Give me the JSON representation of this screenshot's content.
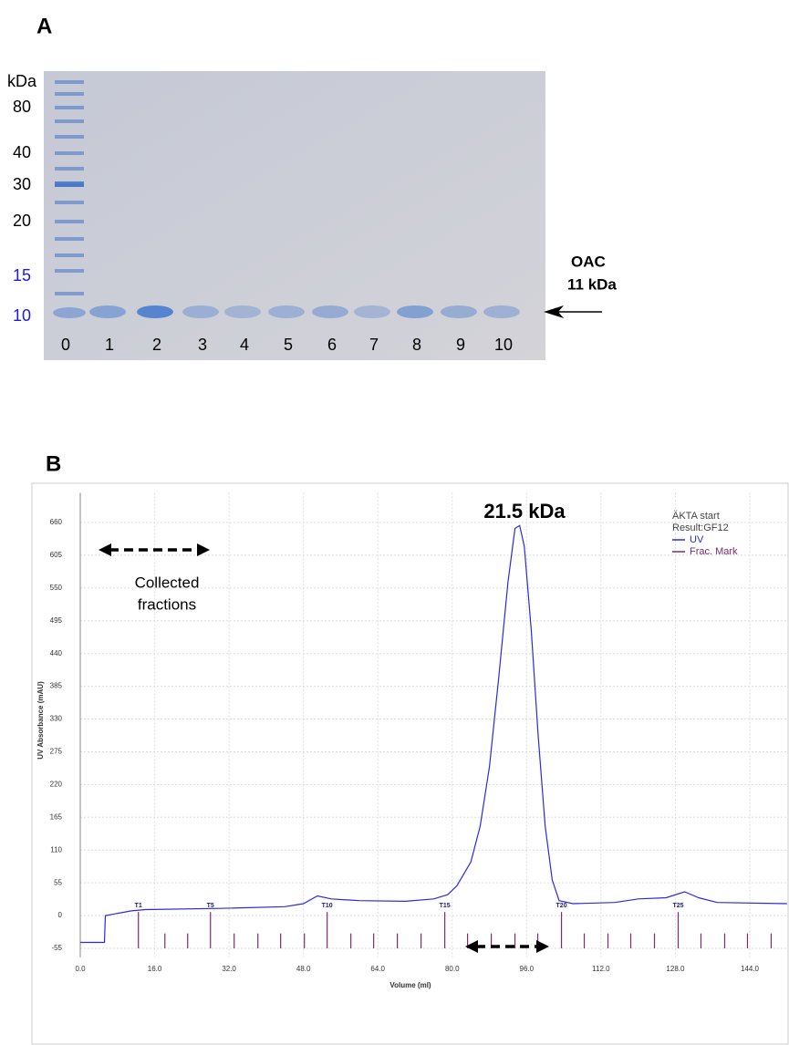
{
  "panel_a": {
    "label": "A",
    "mw_unit": "kDa",
    "mw_labels": [
      "80",
      "40",
      "30",
      "20",
      "15",
      "10"
    ],
    "lanes": [
      "0",
      "1",
      "2",
      "3",
      "4",
      "5",
      "6",
      "7",
      "8",
      "9",
      "10"
    ],
    "protein": "OAC",
    "protein_mass": "11 kDa"
  },
  "panel_b_label": "B",
  "chart_data": {
    "type": "line",
    "x_label": "Volume (ml)",
    "y_label": "UV Absorbance (mAU)",
    "xlim": [
      0,
      152
    ],
    "ylim": [
      -70,
      710
    ],
    "xticks": [
      {
        "value": 0,
        "label": "0.0"
      },
      {
        "value": 16,
        "label": "16.0"
      },
      {
        "value": 32,
        "label": "32.0"
      },
      {
        "value": 48,
        "label": "48.0"
      },
      {
        "value": 64,
        "label": "64.0"
      },
      {
        "value": 80,
        "label": "80.0"
      },
      {
        "value": 96,
        "label": "96.0"
      },
      {
        "value": 112,
        "label": "112.0"
      },
      {
        "value": 128,
        "label": "128.0"
      },
      {
        "value": 144,
        "label": "144.0"
      }
    ],
    "yticks": [
      -55,
      0,
      55,
      110,
      165,
      220,
      275,
      330,
      385,
      440,
      495,
      550,
      605,
      660
    ],
    "grid": true,
    "series": [
      {
        "name": "UV",
        "color": "#2a2ae0",
        "x": [
          0,
          5.2,
          5.4,
          11,
          14,
          30,
          44,
          48,
          51,
          54,
          60,
          70,
          76,
          79,
          81,
          84,
          86,
          88,
          90,
          92,
          93.5,
          94.5,
          95.5,
          97,
          98.5,
          100,
          101.5,
          103,
          106,
          115,
          120,
          126,
          130,
          133,
          137,
          152
        ],
        "values": [
          -45,
          -45,
          0,
          8,
          10,
          12,
          15,
          20,
          33,
          28,
          25,
          24,
          28,
          35,
          50,
          90,
          150,
          250,
          400,
          560,
          650,
          655,
          620,
          480,
          300,
          150,
          60,
          25,
          20,
          22,
          28,
          30,
          40,
          30,
          22,
          20
        ]
      }
    ],
    "fraction_marks": {
      "name": "Frac. Mark",
      "color": "#7b2d6b",
      "x": [
        12.5,
        18.2,
        23.1,
        28.0,
        33.1,
        38.2,
        43.1,
        48.2,
        53.1,
        58.2,
        63.1,
        68.2,
        73.3,
        78.4,
        83.3,
        88.4,
        93.5,
        98.4,
        103.5,
        108.4,
        113.5,
        118.4,
        123.5,
        128.6,
        133.5,
        138.6,
        143.5,
        148.6
      ],
      "labels": [
        "T1",
        null,
        null,
        "T5",
        null,
        null,
        null,
        null,
        "T10",
        null,
        null,
        null,
        null,
        "T15",
        null,
        null,
        null,
        null,
        "T20",
        null,
        null,
        null,
        null,
        "T25",
        null,
        null,
        null,
        null
      ]
    },
    "legend_title": [
      "ÄKTA start",
      "Result:GF12"
    ],
    "annotations": [
      "21.5 kDa",
      "Collected",
      "fractions"
    ]
  }
}
